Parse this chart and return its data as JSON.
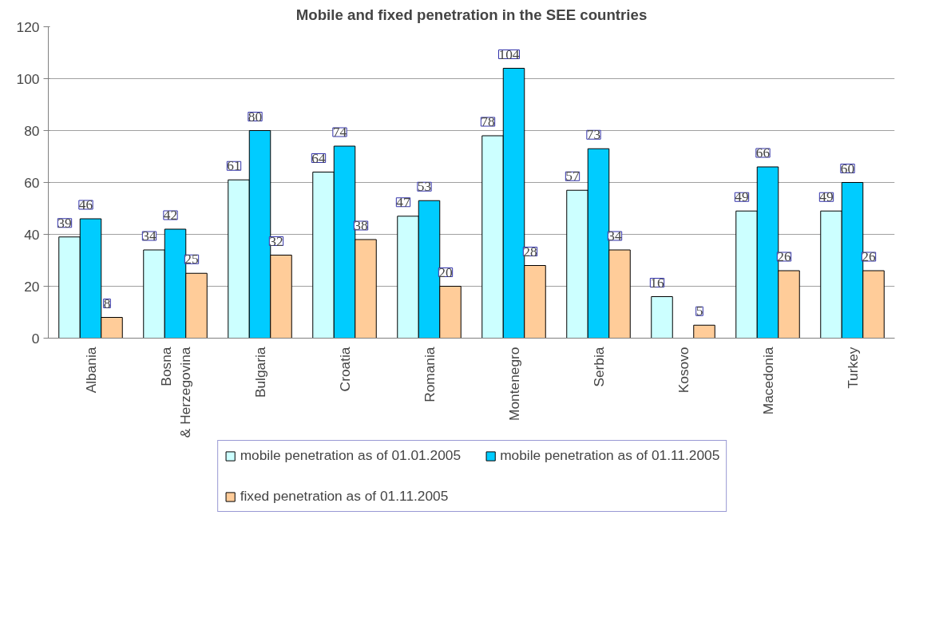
{
  "chart_data": {
    "type": "bar",
    "title": "Mobile and fixed penetration in the SEE countries",
    "categories": [
      "Albania",
      "Bosna & Herzegovina",
      "Bulgaria",
      "Croatia",
      "Romania",
      "Montenegro",
      "Serbia",
      "Kosovo",
      "Macedonia",
      "Turkey"
    ],
    "series": [
      {
        "name": "mobile penetration as of 01.01.2005",
        "color": "#ccffff",
        "values": [
          39,
          34,
          61,
          64,
          47,
          78,
          57,
          16,
          49,
          49
        ]
      },
      {
        "name": "mobile penetration as of 01.11.2005",
        "color": "#00ccff",
        "values": [
          46,
          42,
          80,
          74,
          53,
          104,
          73,
          null,
          66,
          60
        ]
      },
      {
        "name": "fixed penetration as of 01.11.2005",
        "color": "#ffcc99",
        "values": [
          8,
          25,
          32,
          38,
          20,
          28,
          34,
          5,
          26,
          26
        ]
      }
    ],
    "ylim": [
      0,
      120
    ],
    "yticks": [
      0,
      20,
      40,
      60,
      80,
      100,
      120
    ],
    "grid": "y",
    "legend": "bottom",
    "data_labels": true
  }
}
